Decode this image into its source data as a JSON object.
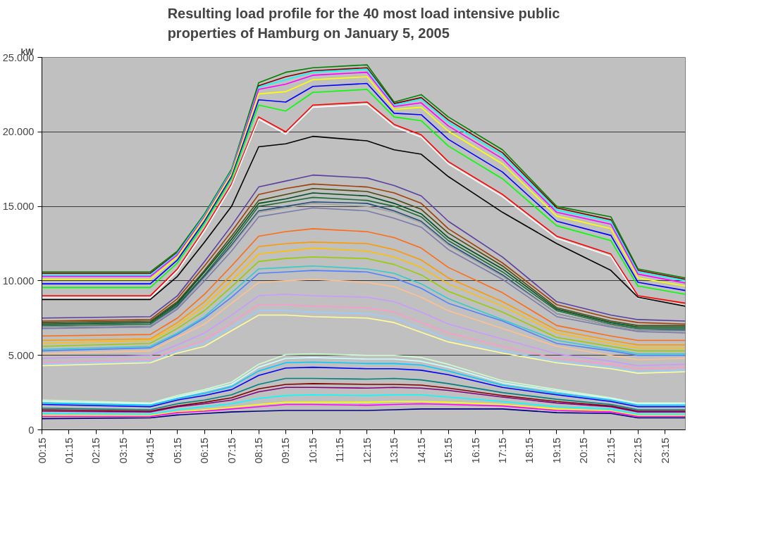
{
  "chart_data": {
    "type": "line",
    "title": "Resulting load profile for the 40 most load intensive public properties of Hamburg on January 5, 2005",
    "ylabel": "kW",
    "x": [
      0.25,
      4.25,
      5.25,
      6.25,
      7.25,
      8.25,
      9.25,
      10.25,
      12.25,
      13.25,
      14.25,
      15.25,
      17.25,
      19.25,
      21.25,
      22.25,
      24
    ],
    "xlim": [
      0.25,
      24
    ],
    "xticks": [
      {
        "value": 0.25,
        "label": "00:15"
      },
      {
        "value": 1.25,
        "label": "01:15"
      },
      {
        "value": 2.25,
        "label": "02:15"
      },
      {
        "value": 3.25,
        "label": "03:15"
      },
      {
        "value": 4.25,
        "label": "04:15"
      },
      {
        "value": 5.25,
        "label": "05:15"
      },
      {
        "value": 6.25,
        "label": "06:15"
      },
      {
        "value": 7.25,
        "label": "07:15"
      },
      {
        "value": 8.25,
        "label": "08:15"
      },
      {
        "value": 9.25,
        "label": "09:15"
      },
      {
        "value": 10.25,
        "label": "10:15"
      },
      {
        "value": 11.25,
        "label": "11:15"
      },
      {
        "value": 12.25,
        "label": "12:15"
      },
      {
        "value": 13.25,
        "label": "13:15"
      },
      {
        "value": 14.25,
        "label": "14:15"
      },
      {
        "value": 15.25,
        "label": "15:15"
      },
      {
        "value": 16.25,
        "label": "16:15"
      },
      {
        "value": 17.25,
        "label": "17:15"
      },
      {
        "value": 18.25,
        "label": "18:15"
      },
      {
        "value": 19.25,
        "label": "19:15"
      },
      {
        "value": 20.25,
        "label": "20:15"
      },
      {
        "value": 21.25,
        "label": "21:15"
      },
      {
        "value": 22.25,
        "label": "22:15"
      },
      {
        "value": 23.25,
        "label": "23:15"
      }
    ],
    "ylim": [
      0,
      25000
    ],
    "yticks": [
      {
        "value": 0,
        "label": "0"
      },
      {
        "value": 5000,
        "label": "5.000"
      },
      {
        "value": 10000,
        "label": "10.000"
      },
      {
        "value": 15000,
        "label": "15.000"
      },
      {
        "value": 20000,
        "label": "20.000"
      },
      {
        "value": 25000,
        "label": "25.000"
      }
    ],
    "grid": "y",
    "marker": "none",
    "line_style": "solid",
    "series": [
      {
        "color": "#008000",
        "values": [
          10600,
          10600,
          12000,
          14500,
          17500,
          23300,
          24000,
          24300,
          24500,
          22000,
          22500,
          21000,
          18800,
          15000,
          14300,
          10800,
          10200
        ]
      },
      {
        "color": "#800000",
        "values": [
          10500,
          10500,
          11900,
          14400,
          17400,
          23100,
          23700,
          24100,
          24300,
          21900,
          22300,
          20800,
          18600,
          14900,
          14100,
          10700,
          10100
        ]
      },
      {
        "color": "#00ffff",
        "values": [
          10400,
          10400,
          11850,
          14400,
          17400,
          23000,
          23500,
          24000,
          24200,
          21800,
          22200,
          20650,
          18450,
          14750,
          14000,
          10600,
          10000
        ]
      },
      {
        "color": "#ff00ff",
        "values": [
          10300,
          10300,
          11750,
          14300,
          17300,
          22850,
          23200,
          23800,
          24000,
          21700,
          21950,
          20400,
          18200,
          14600,
          13800,
          10450,
          9850
        ]
      },
      {
        "color": "#ffff00",
        "values": [
          10100,
          10100,
          11600,
          14200,
          17200,
          22550,
          22700,
          23500,
          23700,
          21500,
          21650,
          20050,
          17850,
          14350,
          13500,
          10200,
          9650
        ]
      },
      {
        "color": "#0000ff",
        "values": [
          9800,
          9800,
          11400,
          14000,
          17000,
          22150,
          22000,
          23050,
          23250,
          21250,
          21150,
          19500,
          17300,
          14000,
          13050,
          9900,
          9350
        ]
      },
      {
        "color": "#00ff00",
        "values": [
          9550,
          9550,
          11200,
          13850,
          16850,
          21800,
          21400,
          22650,
          22850,
          21000,
          20750,
          19050,
          16850,
          13700,
          12700,
          9650,
          9100
        ]
      },
      {
        "color": "#ff0000",
        "values": [
          9000,
          9000,
          10800,
          13500,
          16500,
          21000,
          20000,
          21800,
          22000,
          20500,
          19800,
          18000,
          15800,
          13000,
          11800,
          9000,
          8500
        ]
      },
      {
        "color": "#ffffff",
        "values": [
          8850,
          8850,
          10650,
          13350,
          16350,
          20850,
          19850,
          21650,
          21850,
          20350,
          19650,
          17850,
          15650,
          12850,
          11650,
          8850,
          8350
        ]
      },
      {
        "color": "#000000",
        "values": [
          8750,
          8750,
          10300,
          12600,
          15000,
          19000,
          19200,
          19700,
          19400,
          18800,
          18500,
          17000,
          14600,
          12500,
          10700,
          8900,
          8300
        ]
      },
      {
        "color": "#5b3fa0",
        "values": [
          7500,
          7600,
          9000,
          11300,
          13700,
          16300,
          16700,
          17100,
          16900,
          16400,
          15700,
          14000,
          11600,
          8600,
          7700,
          7400,
          7300
        ]
      },
      {
        "color": "#a0400a",
        "values": [
          7300,
          7400,
          8800,
          11000,
          13300,
          15800,
          16200,
          16500,
          16300,
          15900,
          15200,
          13500,
          11200,
          8400,
          7500,
          7200,
          7100
        ]
      },
      {
        "color": "#4a4a10",
        "values": [
          7200,
          7300,
          8600,
          10700,
          13000,
          15400,
          15800,
          16200,
          16000,
          15500,
          14800,
          13200,
          11000,
          8200,
          7300,
          7000,
          7000
        ]
      },
      {
        "color": "#004d20",
        "values": [
          7100,
          7200,
          8500,
          10600,
          12800,
          15200,
          15500,
          15900,
          15700,
          15200,
          14500,
          12900,
          10800,
          8100,
          7200,
          6900,
          6900
        ]
      },
      {
        "color": "#1e6b3a",
        "values": [
          7000,
          7100,
          8400,
          10400,
          12600,
          15000,
          15300,
          15600,
          15400,
          15000,
          14300,
          12700,
          10600,
          8000,
          7100,
          6800,
          6800
        ]
      },
      {
        "color": "#1f4e79",
        "values": [
          6900,
          7000,
          8300,
          10300,
          12400,
          14700,
          15000,
          15300,
          15200,
          14700,
          14000,
          12500,
          10400,
          7800,
          7000,
          6700,
          6700
        ]
      },
      {
        "color": "#a0a0a0",
        "values": [
          6900,
          7000,
          8200,
          10200,
          12300,
          14600,
          14900,
          15200,
          15000,
          14600,
          13900,
          12400,
          10300,
          7800,
          7000,
          6700,
          6600
        ]
      },
      {
        "color": "#7a7aaa",
        "values": [
          6800,
          6900,
          8100,
          10000,
          12000,
          14300,
          14600,
          14900,
          14700,
          14200,
          13600,
          12100,
          10100,
          7600,
          6900,
          6600,
          6500
        ]
      },
      {
        "color": "#ff6a13",
        "values": [
          6300,
          6400,
          7500,
          9100,
          11000,
          13000,
          13300,
          13500,
          13300,
          12900,
          12200,
          10900,
          9200,
          7000,
          6300,
          6000,
          6000
        ]
      },
      {
        "color": "#ff9900",
        "values": [
          6000,
          6100,
          7200,
          8600,
          10400,
          12300,
          12500,
          12600,
          12500,
          12100,
          11400,
          10200,
          8600,
          6700,
          6000,
          5700,
          5700
        ]
      },
      {
        "color": "#ffc000",
        "values": [
          5800,
          6000,
          7000,
          8300,
          10000,
          11800,
          12000,
          12200,
          12000,
          11600,
          10900,
          9800,
          8300,
          6500,
          5800,
          5500,
          5500
        ]
      },
      {
        "color": "#99cc00",
        "values": [
          5600,
          5800,
          6800,
          8000,
          9600,
          11300,
          11500,
          11600,
          11500,
          11100,
          10400,
          9300,
          7900,
          6200,
          5600,
          5300,
          5300
        ]
      },
      {
        "color": "#33cccc",
        "values": [
          5400,
          5600,
          6500,
          7600,
          9200,
          10800,
          10900,
          11000,
          10800,
          10500,
          9800,
          8800,
          7400,
          6000,
          5400,
          5100,
          5100
        ]
      },
      {
        "color": "#4f81ff",
        "values": [
          5300,
          5500,
          6400,
          7500,
          8900,
          10500,
          10600,
          10700,
          10600,
          10200,
          9500,
          8500,
          7300,
          5800,
          5300,
          5000,
          5000
        ]
      },
      {
        "color": "#ffc090",
        "values": [
          5100,
          5300,
          6200,
          7100,
          8500,
          9900,
          10000,
          10100,
          9900,
          9600,
          8900,
          8000,
          6800,
          5600,
          5000,
          4700,
          4800
        ]
      },
      {
        "color": "#cc99ff",
        "values": [
          4800,
          5000,
          5700,
          6500,
          7700,
          9000,
          9100,
          9000,
          8900,
          8600,
          7900,
          7100,
          6100,
          5100,
          4600,
          4300,
          4400
        ]
      },
      {
        "color": "#ff99cc",
        "values": [
          4500,
          4700,
          5400,
          6000,
          7200,
          8400,
          8400,
          8300,
          8200,
          7900,
          7200,
          6500,
          5600,
          4800,
          4400,
          4100,
          4200
        ]
      },
      {
        "color": "#99ccff",
        "values": [
          4400,
          4600,
          5300,
          5800,
          6900,
          8000,
          8000,
          7900,
          7800,
          7500,
          6800,
          6100,
          5300,
          4600,
          4200,
          3900,
          4000
        ]
      },
      {
        "color": "#ffff99",
        "values": [
          4300,
          4500,
          5150,
          5600,
          6650,
          7700,
          7700,
          7600,
          7500,
          7200,
          6550,
          5900,
          5150,
          4500,
          4100,
          3800,
          3900
        ]
      },
      {
        "color": "#ccffcc",
        "values": [
          2000,
          1800,
          2300,
          2700,
          3200,
          4400,
          5050,
          5100,
          5000,
          5000,
          4850,
          4400,
          3300,
          2700,
          2150,
          1800,
          1800
        ]
      },
      {
        "color": "#ccffff",
        "values": [
          1900,
          1750,
          2200,
          2600,
          3050,
          4200,
          4800,
          4850,
          4750,
          4750,
          4600,
          4200,
          3150,
          2600,
          2100,
          1750,
          1750
        ]
      },
      {
        "color": "#00ccff",
        "values": [
          1800,
          1650,
          2100,
          2450,
          2900,
          3950,
          4500,
          4550,
          4450,
          4450,
          4350,
          3950,
          3000,
          2450,
          2000,
          1650,
          1650
        ]
      },
      {
        "color": "#0000ff",
        "values": [
          1700,
          1550,
          2000,
          2300,
          2700,
          3650,
          4150,
          4200,
          4100,
          4100,
          4000,
          3700,
          2850,
          2350,
          1900,
          1550,
          1550
        ]
      },
      {
        "color": "#008080",
        "values": [
          1450,
          1350,
          1750,
          2000,
          2350,
          3050,
          3450,
          3450,
          3400,
          3450,
          3350,
          3100,
          2500,
          2050,
          1700,
          1350,
          1350
        ]
      },
      {
        "color": "#800000",
        "values": [
          1350,
          1250,
          1600,
          1850,
          2150,
          2750,
          3050,
          3100,
          3050,
          3050,
          3000,
          2800,
          2300,
          1900,
          1600,
          1250,
          1250
        ]
      },
      {
        "color": "#800080",
        "values": [
          1250,
          1200,
          1550,
          1750,
          2000,
          2550,
          2850,
          2850,
          2800,
          2850,
          2800,
          2650,
          2200,
          1800,
          1550,
          1200,
          1200
        ]
      },
      {
        "color": "#00ffff",
        "values": [
          1100,
          1050,
          1350,
          1550,
          1750,
          2100,
          2300,
          2350,
          2300,
          2350,
          2350,
          2200,
          1900,
          1550,
          1400,
          1050,
          1050
        ]
      },
      {
        "color": "#ffff00",
        "values": [
          950,
          950,
          1200,
          1350,
          1500,
          1700,
          1850,
          1850,
          1850,
          1900,
          1900,
          1850,
          1700,
          1400,
          1250,
          950,
          950
        ]
      },
      {
        "color": "#ff00ff",
        "values": [
          900,
          900,
          1150,
          1250,
          1400,
          1550,
          1700,
          1700,
          1650,
          1700,
          1750,
          1700,
          1600,
          1300,
          1200,
          900,
          900
        ]
      },
      {
        "color": "#000080",
        "values": [
          750,
          800,
          1000,
          1100,
          1200,
          1250,
          1300,
          1300,
          1300,
          1350,
          1400,
          1400,
          1400,
          1150,
          1100,
          800,
          800
        ]
      }
    ]
  }
}
